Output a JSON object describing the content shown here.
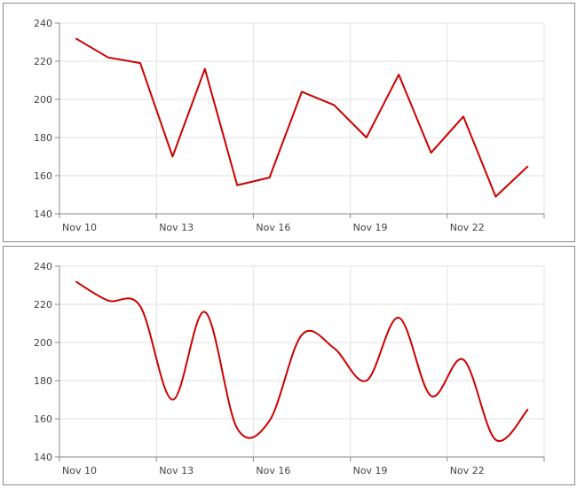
{
  "chart_data": [
    {
      "type": "line",
      "categories": [
        "Nov 10",
        "Nov 11",
        "Nov 12",
        "Nov 13",
        "Nov 14",
        "Nov 15",
        "Nov 16",
        "Nov 17",
        "Nov 18",
        "Nov 19",
        "Nov 20",
        "Nov 21",
        "Nov 22",
        "Nov 23",
        "Nov 24"
      ],
      "values": [
        232,
        222,
        219,
        170,
        216,
        155,
        159,
        204,
        197,
        180,
        213,
        172,
        191,
        149,
        165
      ],
      "x_tick_labels": [
        "Nov 10",
        "Nov 13",
        "Nov 16",
        "Nov 19",
        "Nov 22"
      ],
      "y_tick_labels": [
        "140",
        "160",
        "180",
        "200",
        "220",
        "240"
      ],
      "ylim": [
        140,
        240
      ],
      "grid": true,
      "interpolation": "linear",
      "color": "#cc0000"
    },
    {
      "type": "line",
      "categories": [
        "Nov 10",
        "Nov 11",
        "Nov 12",
        "Nov 13",
        "Nov 14",
        "Nov 15",
        "Nov 16",
        "Nov 17",
        "Nov 18",
        "Nov 19",
        "Nov 20",
        "Nov 21",
        "Nov 22",
        "Nov 23",
        "Nov 24"
      ],
      "values": [
        232,
        222,
        219,
        170,
        216,
        155,
        159,
        204,
        197,
        180,
        213,
        172,
        191,
        149,
        165
      ],
      "x_tick_labels": [
        "Nov 10",
        "Nov 13",
        "Nov 16",
        "Nov 19",
        "Nov 22"
      ],
      "y_tick_labels": [
        "140",
        "160",
        "180",
        "200",
        "220",
        "240"
      ],
      "ylim": [
        140,
        240
      ],
      "grid": true,
      "interpolation": "smooth",
      "color": "#cc0000"
    }
  ]
}
